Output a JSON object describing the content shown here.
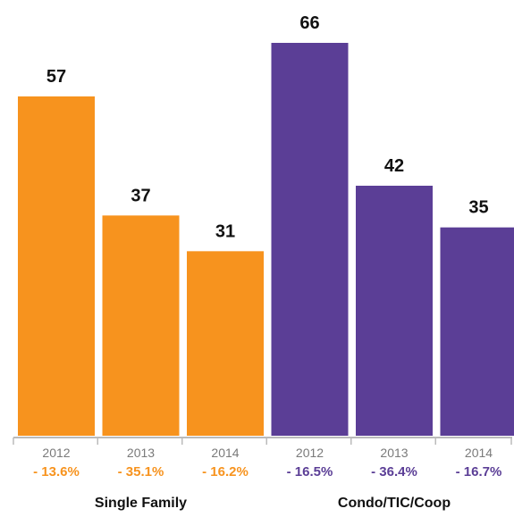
{
  "chart_data": {
    "type": "bar",
    "ylim": [
      0,
      75
    ],
    "grid": false,
    "colors": {
      "orange": "#f7931e",
      "purple": "#5b3e96",
      "axis": "#bbbbbb",
      "tick_text": "#7a7a7a"
    },
    "groups": [
      {
        "name": "Single Family",
        "color": "#f7931e",
        "bars": [
          {
            "year": "2012",
            "value": 57,
            "label": "57",
            "change": "- 13.6%"
          },
          {
            "year": "2013",
            "value": 37,
            "label": "37",
            "change": "- 35.1%"
          },
          {
            "year": "2014",
            "value": 31,
            "label": "31",
            "change": "- 16.2%"
          }
        ]
      },
      {
        "name": "Condo/TIC/Coop",
        "color": "#5b3e96",
        "bars": [
          {
            "year": "2012",
            "value": 66,
            "label": "66",
            "change": "- 16.5%"
          },
          {
            "year": "2013",
            "value": 42,
            "label": "42",
            "change": "- 36.4%"
          },
          {
            "year": "2014",
            "value": 35,
            "label": "35",
            "change": "- 16.7%"
          }
        ]
      }
    ]
  }
}
